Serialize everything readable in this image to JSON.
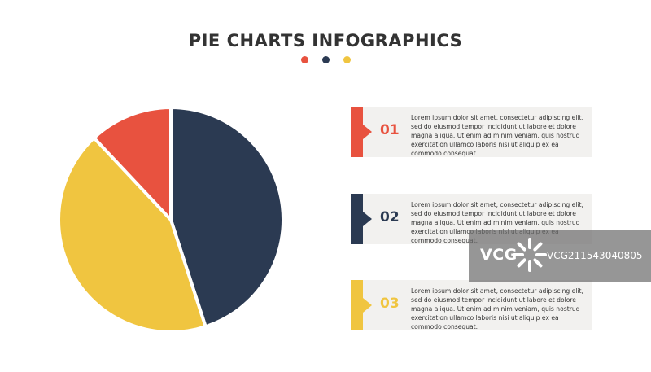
{
  "header": {
    "title": "PIE CHARTS INFOGRAPHICS",
    "dot_colors": [
      "#e8523f",
      "#2b3a52",
      "#f0c540"
    ]
  },
  "colors": {
    "red": "#e8523f",
    "navy": "#2b3a52",
    "yellow": "#f0c540",
    "card_bg": "#f2f1ef"
  },
  "chart_data": {
    "type": "pie",
    "title": "",
    "slices": [
      {
        "color": "#2b3a52",
        "value": 45
      },
      {
        "color": "#f0c540",
        "value": 43
      },
      {
        "color": "#e8523f",
        "value": 12
      }
    ]
  },
  "items": [
    {
      "number": "01",
      "color": "#e8523f",
      "text": "Lorem ipsum dolor sit amet, consectetur adipiscing elit, sed do eiusmod tempor incididunt ut labore et dolore magna aliqua. Ut enim ad minim veniam, quis nostrud exercitation ullamco laboris nisi ut aliquip ex ea commodo consequat."
    },
    {
      "number": "02",
      "color": "#2b3a52",
      "text": "Lorem ipsum dolor sit amet, consectetur adipiscing elit, sed do eiusmod tempor incididunt ut labore et dolore magna aliqua. Ut enim ad minim veniam, quis nostrud exercitation ullamco laboris nisi ut aliquip ex ea commodo consequat."
    },
    {
      "number": "03",
      "color": "#f0c540",
      "text": "Lorem ipsum dolor sit amet, consectetur adipiscing elit, sed do eiusmod tempor incididunt ut labore et dolore magna aliqua. Ut enim ad minim veniam, quis nostrud exercitation ullamco laboris nisi ut aliquip ex ea commodo consequat."
    }
  ],
  "watermark": {
    "logo": "VCG",
    "text": "VCG211543040805"
  }
}
